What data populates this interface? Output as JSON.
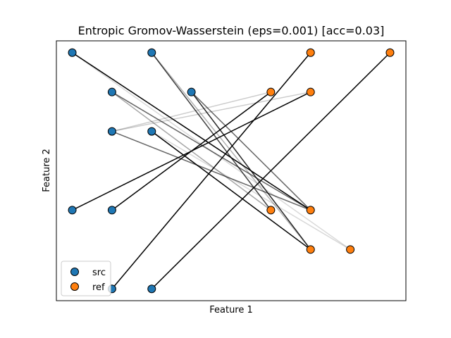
{
  "chart_data": {
    "type": "scatter",
    "title": "Entropic Gromov-Wasserstein (eps=0.001) [acc=0.03]",
    "xlabel": "Feature 1",
    "ylabel": "Feature 2",
    "xlim": [
      -0.4,
      8.4
    ],
    "ylim": [
      -0.3,
      6.3
    ],
    "xticks": [],
    "yticks": [],
    "grid": false,
    "legend": {
      "placement": "lower-left"
    },
    "series": [
      {
        "name": "src",
        "color": "#1f77b4",
        "points": [
          [
            0,
            6
          ],
          [
            2,
            6
          ],
          [
            1,
            5
          ],
          [
            3,
            5
          ],
          [
            1,
            4
          ],
          [
            2,
            4
          ],
          [
            0,
            2
          ],
          [
            1,
            2
          ],
          [
            1,
            0
          ],
          [
            2,
            0
          ]
        ]
      },
      {
        "name": "ref",
        "color": "#ff7f0e",
        "points": [
          [
            6,
            6
          ],
          [
            8,
            6
          ],
          [
            5,
            5
          ],
          [
            6,
            5
          ],
          [
            5,
            2
          ],
          [
            6,
            2
          ],
          [
            6,
            1
          ],
          [
            7,
            1
          ]
        ]
      }
    ],
    "couplings": [
      {
        "src": 0,
        "ref": 5,
        "weight": 1.0
      },
      {
        "src": 0,
        "ref": 7,
        "weight": 0.15
      },
      {
        "src": 1,
        "ref": 4,
        "weight": 0.75
      },
      {
        "src": 1,
        "ref": 6,
        "weight": 0.3
      },
      {
        "src": 2,
        "ref": 5,
        "weight": 0.6
      },
      {
        "src": 2,
        "ref": 4,
        "weight": 0.35
      },
      {
        "src": 3,
        "ref": 6,
        "weight": 0.85
      },
      {
        "src": 3,
        "ref": 5,
        "weight": 0.6
      },
      {
        "src": 4,
        "ref": 2,
        "weight": 0.2
      },
      {
        "src": 4,
        "ref": 3,
        "weight": 0.2
      },
      {
        "src": 4,
        "ref": 5,
        "weight": 0.6
      },
      {
        "src": 5,
        "ref": 6,
        "weight": 1.0
      },
      {
        "src": 5,
        "ref": 7,
        "weight": 0.15
      },
      {
        "src": 6,
        "ref": 3,
        "weight": 1.0
      },
      {
        "src": 7,
        "ref": 2,
        "weight": 1.0
      },
      {
        "src": 8,
        "ref": 0,
        "weight": 1.0
      },
      {
        "src": 9,
        "ref": 1,
        "weight": 1.0
      }
    ]
  }
}
